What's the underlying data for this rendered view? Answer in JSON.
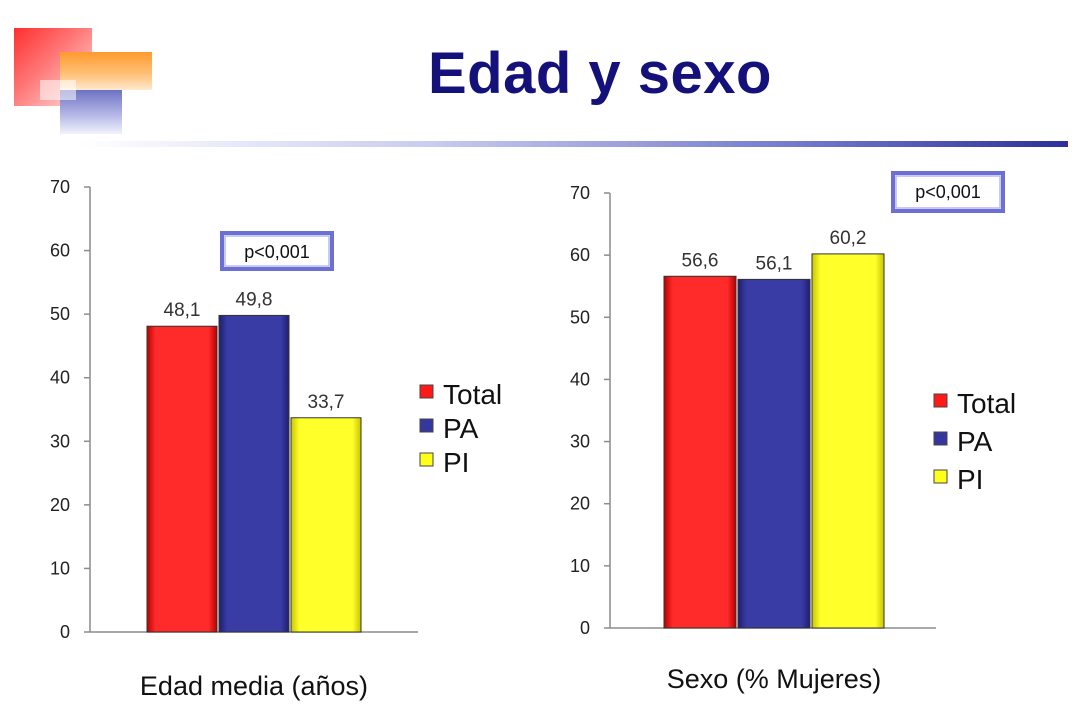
{
  "slide": {
    "title": "Edad y sexo"
  },
  "colors": {
    "title": "#14127a",
    "total": "#ff1a1a",
    "pa": "#36379e",
    "pi": "#ffff1a"
  },
  "chart_data": [
    {
      "type": "bar",
      "categories": [
        "Total",
        "PA",
        "PI"
      ],
      "values": [
        48.1,
        49.8,
        33.7
      ],
      "value_labels": [
        "48,1",
        "49,8",
        "33,7"
      ],
      "xlabel": "Edad media (años)",
      "ylim": [
        0,
        70
      ],
      "yticks": [
        0,
        10,
        20,
        30,
        40,
        50,
        60,
        70
      ],
      "legend": {
        "placement": "right",
        "entries": [
          "Total",
          "PA",
          "PI"
        ]
      },
      "annotation": "p<0,001",
      "grid": false
    },
    {
      "type": "bar",
      "categories": [
        "Total",
        "PA",
        "PI"
      ],
      "values": [
        56.6,
        56.1,
        60.2
      ],
      "value_labels": [
        "56,6",
        "56,1",
        "60,2"
      ],
      "xlabel": "Sexo (% Mujeres)",
      "ylim": [
        0,
        70
      ],
      "yticks": [
        0,
        10,
        20,
        30,
        40,
        50,
        60,
        70
      ],
      "legend": {
        "placement": "right",
        "entries": [
          "Total",
          "PA",
          "PI"
        ]
      },
      "annotation": "p<0,001",
      "grid": false
    }
  ]
}
